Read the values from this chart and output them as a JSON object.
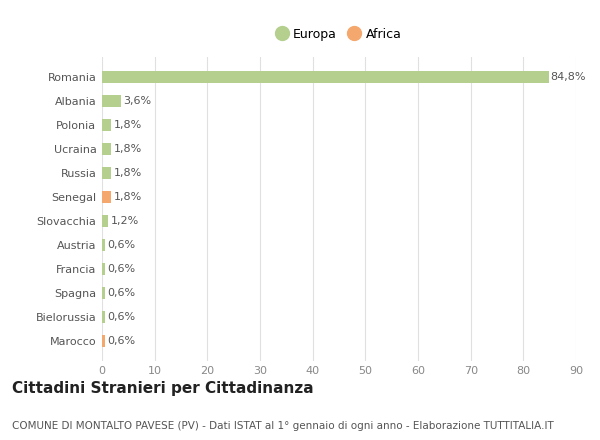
{
  "countries": [
    "Marocco",
    "Bielorussia",
    "Spagna",
    "Francia",
    "Austria",
    "Slovacchia",
    "Senegal",
    "Russia",
    "Ucraina",
    "Polonia",
    "Albania",
    "Romania"
  ],
  "values": [
    0.6,
    0.6,
    0.6,
    0.6,
    0.6,
    1.2,
    1.8,
    1.8,
    1.8,
    1.8,
    3.6,
    84.8
  ],
  "labels": [
    "0,6%",
    "0,6%",
    "0,6%",
    "0,6%",
    "0,6%",
    "1,2%",
    "1,8%",
    "1,8%",
    "1,8%",
    "1,8%",
    "3,6%",
    "84,8%"
  ],
  "colors": [
    "#f5a86e",
    "#b5cf8f",
    "#b5cf8f",
    "#b5cf8f",
    "#b5cf8f",
    "#b5cf8f",
    "#f5a86e",
    "#b5cf8f",
    "#b5cf8f",
    "#b5cf8f",
    "#b5cf8f",
    "#b5cf8f"
  ],
  "europa_color": "#b5cf8f",
  "africa_color": "#f5a86e",
  "background_color": "#ffffff",
  "grid_color": "#e0e0e0",
  "xlim": [
    0,
    90
  ],
  "xticks": [
    0,
    10,
    20,
    30,
    40,
    50,
    60,
    70,
    80,
    90
  ],
  "title": "Cittadini Stranieri per Cittadinanza",
  "subtitle": "COMUNE DI MONTALTO PAVESE (PV) - Dati ISTAT al 1° gennaio di ogni anno - Elaborazione TUTTITALIA.IT",
  "title_fontsize": 11,
  "subtitle_fontsize": 7.5,
  "tick_fontsize": 8,
  "label_fontsize": 8,
  "legend_fontsize": 9
}
